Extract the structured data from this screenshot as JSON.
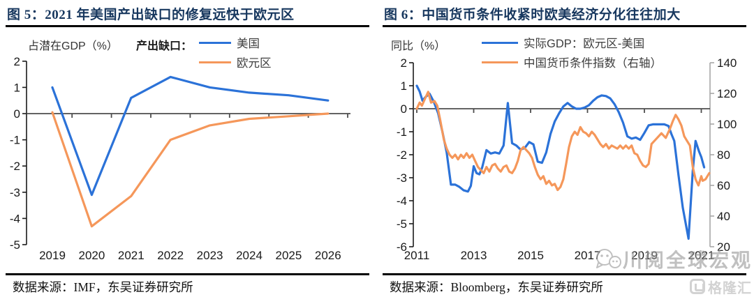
{
  "colors": {
    "blue": "#2b72d8",
    "orange": "#f5975a",
    "title_navy": "#17375e",
    "axis_black": "#1a1a1a",
    "right_axis_gray": "#a6a6a6",
    "zero_line": "#4d4d4d"
  },
  "figure5": {
    "title": "图 5：2021 年美国产出缺口的修复远快于欧元区",
    "y_axis_caption": "占潜在GDP（%）",
    "legend_title": "产出缺口：",
    "legend": [
      {
        "id": "us",
        "label": "美国",
        "color_key": "blue"
      },
      {
        "id": "eurozone",
        "label": "欧元区",
        "color_key": "orange"
      }
    ],
    "source": "数据来源：IMF，东吴证券研究所",
    "chart_data": {
      "type": "line",
      "x": [
        2019,
        2020,
        2021,
        2022,
        2023,
        2024,
        2025,
        2026
      ],
      "xticks": [
        "2019",
        "2020",
        "2021",
        "2022",
        "2023",
        "2024",
        "2025",
        "2026"
      ],
      "yticks": [
        "2",
        "1",
        "0",
        "-1",
        "-2",
        "-3",
        "-4",
        "-5"
      ],
      "ylim": [
        -5,
        2
      ],
      "series": [
        {
          "id": "us",
          "name": "美国",
          "axis": "left",
          "color_key": "blue",
          "values": [
            1.0,
            -3.1,
            0.6,
            1.4,
            1.0,
            0.8,
            0.7,
            0.5
          ]
        },
        {
          "id": "eurozone",
          "name": "欧元区",
          "axis": "left",
          "color_key": "orange",
          "values": [
            0.05,
            -4.3,
            -3.15,
            -1.0,
            -0.45,
            -0.2,
            -0.1,
            0.0
          ]
        }
      ]
    }
  },
  "figure6": {
    "title": "图 6：中国货币条件收紧时欧美经济分化往往加大",
    "y_axis_caption": "同比（%）",
    "legend": [
      {
        "id": "gdp_diff",
        "label": "实际GDP：欧元区-美国",
        "color_key": "blue"
      },
      {
        "id": "china_mci",
        "label": "中国货币条件指数（右轴）",
        "color_key": "orange"
      }
    ],
    "source": "数据来源：Bloomberg，东吴证券研究所",
    "chart_data": {
      "type": "line",
      "xticks": [
        "2011",
        "2013",
        "2015",
        "2017",
        "2019",
        "2021"
      ],
      "yticks": [
        "2",
        "1",
        "0",
        "-1",
        "-2",
        "-3",
        "-4",
        "-5",
        "-6"
      ],
      "right_yticks": [
        "140",
        "120",
        "100",
        "80",
        "60",
        "40",
        "20"
      ],
      "ylim_left": [
        -6,
        2
      ],
      "ylim_right": [
        20,
        140
      ],
      "series": [
        {
          "id": "gdp_diff",
          "name": "实际GDP：欧元区-美国",
          "axis": "left",
          "color_key": "blue",
          "points": [
            [
              2011.0,
              1.0
            ],
            [
              2011.1,
              0.75
            ],
            [
              2011.2,
              0.35
            ],
            [
              2011.3,
              0.5
            ],
            [
              2011.45,
              0.65
            ],
            [
              2011.6,
              0.3
            ],
            [
              2011.75,
              -0.2
            ],
            [
              2011.9,
              -1.0
            ],
            [
              2012.05,
              -1.9
            ],
            [
              2012.2,
              -3.3
            ],
            [
              2012.35,
              -3.3
            ],
            [
              2012.5,
              -3.4
            ],
            [
              2012.65,
              -3.55
            ],
            [
              2012.8,
              -3.6
            ],
            [
              2012.9,
              -3.35
            ],
            [
              2013.0,
              -2.5
            ],
            [
              2013.1,
              -2.8
            ],
            [
              2013.2,
              -2.85
            ],
            [
              2013.3,
              -2.55
            ],
            [
              2013.45,
              -1.8
            ],
            [
              2013.6,
              -1.95
            ],
            [
              2013.75,
              -1.9
            ],
            [
              2013.9,
              -1.95
            ],
            [
              2014.05,
              -1.6
            ],
            [
              2014.2,
              0.25
            ],
            [
              2014.35,
              -1.5
            ],
            [
              2014.5,
              -1.6
            ],
            [
              2014.65,
              -1.78
            ],
            [
              2014.8,
              -1.7
            ],
            [
              2014.95,
              -1.45
            ],
            [
              2015.1,
              -1.55
            ],
            [
              2015.25,
              -2.3
            ],
            [
              2015.4,
              -2.35
            ],
            [
              2015.55,
              -1.9
            ],
            [
              2015.7,
              -1.1
            ],
            [
              2015.85,
              -0.55
            ],
            [
              2016.0,
              -0.2
            ],
            [
              2016.15,
              0.1
            ],
            [
              2016.3,
              0.25
            ],
            [
              2016.45,
              0.1
            ],
            [
              2016.6,
              0.0
            ],
            [
              2016.75,
              0.0
            ],
            [
              2016.9,
              0.05
            ],
            [
              2017.05,
              0.15
            ],
            [
              2017.2,
              0.35
            ],
            [
              2017.35,
              0.5
            ],
            [
              2017.5,
              0.58
            ],
            [
              2017.65,
              0.55
            ],
            [
              2017.8,
              0.45
            ],
            [
              2017.95,
              0.2
            ],
            [
              2018.1,
              -0.15
            ],
            [
              2018.25,
              -0.6
            ],
            [
              2018.4,
              -1.2
            ],
            [
              2018.55,
              -1.3
            ],
            [
              2018.7,
              -1.25
            ],
            [
              2018.85,
              -1.35
            ],
            [
              2019.0,
              -1.05
            ],
            [
              2019.15,
              -0.72
            ],
            [
              2019.3,
              -0.68
            ],
            [
              2019.5,
              -0.68
            ],
            [
              2019.7,
              -0.68
            ],
            [
              2019.85,
              -0.75
            ],
            [
              2019.95,
              -1.1
            ],
            [
              2020.05,
              -1.4
            ],
            [
              2020.2,
              -2.9
            ],
            [
              2020.35,
              -4.3
            ],
            [
              2020.55,
              -5.65
            ],
            [
              2020.7,
              -2.7
            ],
            [
              2020.8,
              -1.4
            ],
            [
              2020.92,
              -1.85
            ],
            [
              2021.0,
              -2.1
            ],
            [
              2021.1,
              -2.55
            ]
          ]
        },
        {
          "id": "china_mci",
          "name": "中国货币条件指数（右轴）",
          "axis": "right",
          "color_key": "orange",
          "points": [
            [
              2011.0,
              110
            ],
            [
              2011.1,
              114
            ],
            [
              2011.18,
              112
            ],
            [
              2011.3,
              117
            ],
            [
              2011.4,
              121
            ],
            [
              2011.5,
              114
            ],
            [
              2011.62,
              115
            ],
            [
              2011.72,
              112
            ],
            [
              2011.82,
              103
            ],
            [
              2011.95,
              90
            ],
            [
              2012.05,
              84
            ],
            [
              2012.15,
              80
            ],
            [
              2012.25,
              78
            ],
            [
              2012.35,
              80
            ],
            [
              2012.45,
              77
            ],
            [
              2012.55,
              80
            ],
            [
              2012.65,
              78
            ],
            [
              2012.75,
              81
            ],
            [
              2012.85,
              78
            ],
            [
              2012.95,
              80
            ],
            [
              2013.05,
              76
            ],
            [
              2013.15,
              72
            ],
            [
              2013.25,
              70
            ],
            [
              2013.35,
              68
            ],
            [
              2013.45,
              72
            ],
            [
              2013.55,
              69
            ],
            [
              2013.65,
              73
            ],
            [
              2013.75,
              74
            ],
            [
              2013.85,
              71
            ],
            [
              2013.95,
              69
            ],
            [
              2014.05,
              72
            ],
            [
              2014.15,
              73
            ],
            [
              2014.25,
              69
            ],
            [
              2014.35,
              68
            ],
            [
              2014.45,
              71
            ],
            [
              2014.55,
              76
            ],
            [
              2014.65,
              83
            ],
            [
              2014.75,
              85
            ],
            [
              2014.85,
              83
            ],
            [
              2014.95,
              81
            ],
            [
              2015.05,
              78
            ],
            [
              2015.15,
              72
            ],
            [
              2015.25,
              67
            ],
            [
              2015.35,
              64
            ],
            [
              2015.45,
              66
            ],
            [
              2015.55,
              61
            ],
            [
              2015.65,
              63
            ],
            [
              2015.75,
              60
            ],
            [
              2015.85,
              61
            ],
            [
              2015.95,
              57
            ],
            [
              2016.05,
              59
            ],
            [
              2016.15,
              64
            ],
            [
              2016.25,
              74
            ],
            [
              2016.35,
              85
            ],
            [
              2016.45,
              92
            ],
            [
              2016.55,
              95
            ],
            [
              2016.65,
              93
            ],
            [
              2016.75,
              98
            ],
            [
              2016.85,
              95
            ],
            [
              2016.95,
              94
            ],
            [
              2017.05,
              92
            ],
            [
              2017.15,
              95
            ],
            [
              2017.25,
              93
            ],
            [
              2017.35,
              90
            ],
            [
              2017.45,
              87
            ],
            [
              2017.55,
              85
            ],
            [
              2017.65,
              87
            ],
            [
              2017.75,
              84
            ],
            [
              2017.85,
              86
            ],
            [
              2017.95,
              85
            ],
            [
              2018.05,
              84
            ],
            [
              2018.15,
              86
            ],
            [
              2018.25,
              84
            ],
            [
              2018.35,
              86
            ],
            [
              2018.45,
              84
            ],
            [
              2018.55,
              86
            ],
            [
              2018.65,
              81
            ],
            [
              2018.75,
              80
            ],
            [
              2018.85,
              76
            ],
            [
              2018.95,
              73
            ],
            [
              2019.05,
              72
            ],
            [
              2019.15,
              74
            ],
            [
              2019.25,
              87
            ],
            [
              2019.35,
              89
            ],
            [
              2019.5,
              92
            ],
            [
              2019.6,
              94
            ],
            [
              2019.75,
              91
            ],
            [
              2019.9,
              97
            ],
            [
              2020.0,
              102
            ],
            [
              2020.1,
              106
            ],
            [
              2020.2,
              103
            ],
            [
              2020.3,
              99
            ],
            [
              2020.4,
              92
            ],
            [
              2020.5,
              89
            ],
            [
              2020.6,
              86
            ],
            [
              2020.7,
              72
            ],
            [
              2020.8,
              64
            ],
            [
              2020.9,
              60
            ],
            [
              2021.0,
              66
            ],
            [
              2021.05,
              63
            ],
            [
              2021.15,
              64
            ],
            [
              2021.28,
              68
            ]
          ]
        }
      ]
    }
  },
  "watermark": {
    "text": "川阅全球宏观"
  },
  "logo": {
    "text": "格隆汇"
  }
}
